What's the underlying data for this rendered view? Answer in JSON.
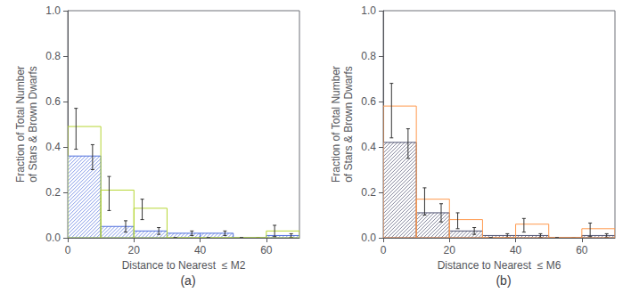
{
  "chart_data": [
    {
      "type": "histogram",
      "xlabel": "Distance to Nearest  ≤ M2",
      "ylabel": "Fraction of Total Number\nof Stars & Brown Dwarfs",
      "annotations": [
        "(a)"
      ],
      "bins": [
        0,
        10,
        20,
        30,
        40,
        50,
        60,
        70
      ],
      "series": [
        {
          "values": [
            0.36,
            0.05,
            0.03,
            0.02,
            0.02,
            0.0,
            0.01
          ],
          "error_lo": [
            0.06,
            0.025,
            0.015,
            0.01,
            0.01,
            0.0,
            0.008
          ],
          "error_hi": [
            0.05,
            0.025,
            0.015,
            0.01,
            0.01,
            0.0,
            0.008
          ]
        },
        {
          "values": [
            0.49,
            0.21,
            0.13,
            0.0,
            0.0,
            0.0,
            0.03
          ],
          "error_lo": [
            0.1,
            0.09,
            0.05,
            0.0,
            0.0,
            0.0,
            0.025
          ],
          "error_hi": [
            0.08,
            0.06,
            0.04,
            0.0,
            0.0,
            0.0,
            0.025
          ]
        }
      ],
      "xlim": [
        0,
        70
      ],
      "ylim": [
        0,
        1.0
      ],
      "xticks": [
        0,
        20,
        40,
        60
      ],
      "yticks": [
        {
          "value": 0,
          "label": "0.0"
        },
        0.2,
        0.4,
        0.6,
        0.8,
        {
          "value": 1.0,
          "label": "1.0"
        }
      ],
      "grid": false
    },
    {
      "type": "histogram",
      "xlabel": "Distance to Nearest  ≤ M6",
      "ylabel": "Fraction of Total Number\nof Stars & Brown Dwarfs",
      "annotations": [
        "(b)"
      ],
      "bins": [
        0,
        10,
        20,
        30,
        40,
        50,
        60,
        70
      ],
      "series": [
        {
          "values": [
            0.42,
            0.11,
            0.03,
            0.01,
            0.01,
            0.0,
            0.01
          ],
          "error_lo": [
            0.07,
            0.04,
            0.015,
            0.008,
            0.008,
            0.0,
            0.008
          ],
          "error_hi": [
            0.06,
            0.04,
            0.015,
            0.008,
            0.008,
            0.0,
            0.008
          ]
        },
        {
          "values": [
            0.58,
            0.17,
            0.08,
            0.0,
            0.06,
            0.0,
            0.04
          ],
          "error_lo": [
            0.14,
            0.07,
            0.04,
            0.0,
            0.035,
            0.0,
            0.035
          ],
          "error_hi": [
            0.1,
            0.05,
            0.03,
            0.0,
            0.025,
            0.0,
            0.025
          ]
        }
      ],
      "xlim": [
        0,
        70
      ],
      "ylim": [
        0,
        1.0
      ],
      "xticks": [
        0,
        20,
        40,
        60
      ],
      "yticks": [
        {
          "value": 0,
          "label": "0.0"
        },
        0.2,
        0.4,
        0.6,
        0.8,
        {
          "value": 1.0,
          "label": "1.0"
        }
      ],
      "grid": false
    }
  ]
}
